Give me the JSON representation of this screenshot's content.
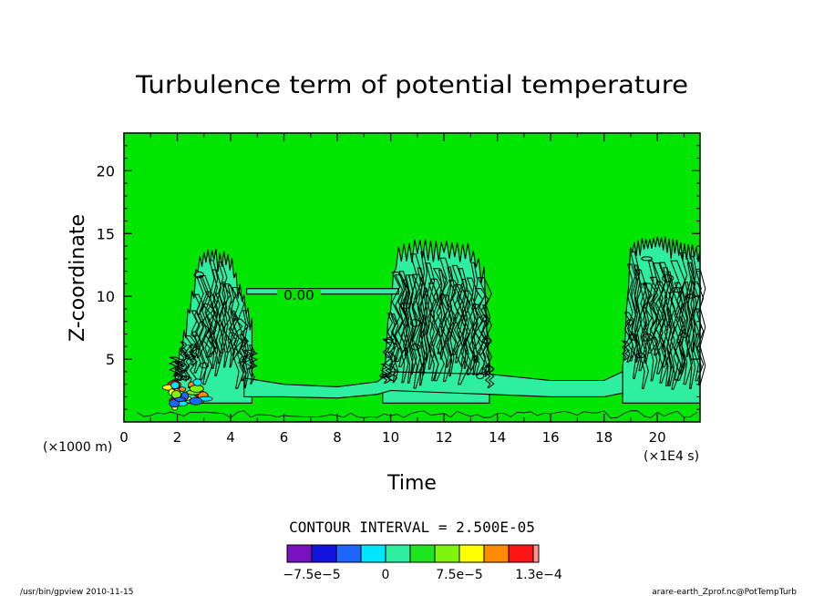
{
  "chart_data": {
    "type": "heatmap",
    "title": "Turbulence term of potential temperature",
    "xlabel": "Time",
    "ylabel": "Z-coordinate",
    "x_unit": "(×1E4 s)",
    "y_unit": "(×1000 m)",
    "xlim": [
      0,
      21.6
    ],
    "ylim": [
      0,
      23
    ],
    "x_ticks": [
      0,
      2,
      4,
      6,
      8,
      10,
      12,
      14,
      16,
      18,
      20
    ],
    "y_ticks": [
      5,
      10,
      15,
      20
    ],
    "contour_label": "0.00",
    "contour_interval_text": "CONTOUR INTERVAL = 2.500E-05",
    "colorbar": {
      "levels": [
        -0.0001,
        -7.5e-05,
        -5e-05,
        -2.5e-05,
        0,
        2.5e-05,
        5e-05,
        7.5e-05,
        0.0001,
        0.000125,
        0.00013
      ],
      "colors": [
        "#7a10c0",
        "#1414e0",
        "#1e64ff",
        "#00e6ff",
        "#2eeea0",
        "#1ee61e",
        "#7ef50a",
        "#ffff00",
        "#ff8c00",
        "#ff1414",
        "#ff9090"
      ],
      "tick_labels": [
        {
          "value": -7.5e-05,
          "text": "−7.5e−5"
        },
        {
          "value": 0,
          "text": "0"
        },
        {
          "value": 7.5e-05,
          "text": "7.5e−5"
        },
        {
          "value": 0.00013,
          "text": "1.3e−4"
        }
      ]
    },
    "background_color": "#00e600",
    "regions": [
      {
        "name": "turbulent-burst-1",
        "x": [
          1.8,
          2.8,
          3.2,
          4.0,
          4.3,
          4.8
        ],
        "top": [
          2.5,
          12.8,
          13.5,
          13.0,
          11.0,
          8.0
        ],
        "level": 0
      },
      {
        "name": "turbulent-burst-2",
        "x": [
          9.7,
          10.2,
          11.0,
          12.0,
          13.0,
          13.5,
          13.7
        ],
        "top": [
          4.0,
          13.5,
          14.2,
          14.0,
          13.8,
          12.0,
          4.0
        ],
        "level": 0
      },
      {
        "name": "turbulent-burst-3",
        "x": [
          18.7,
          19.0,
          20.0,
          21.0,
          21.6
        ],
        "top": [
          4.0,
          14.0,
          14.5,
          14.0,
          13.5
        ],
        "level": 0
      }
    ],
    "boundary_layer": {
      "x": [
        4.5,
        6.0,
        8.0,
        9.5,
        10.0,
        13.7,
        16.0,
        18.0,
        18.7
      ],
      "top": [
        3.5,
        3.0,
        2.8,
        3.2,
        4.0,
        3.8,
        3.3,
        3.3,
        4.0
      ],
      "bottom": [
        2.0,
        2.0,
        1.9,
        2.2,
        2.5,
        2.2,
        2.0,
        2.0,
        2.3
      ]
    },
    "residual_layer": {
      "x": [
        4.6,
        10.3
      ],
      "z": [
        10.4,
        10.4
      ]
    },
    "peak_cluster": {
      "x": [
        1.7,
        3.1
      ],
      "z": [
        1.2,
        3.2
      ],
      "values": [
        0.00013,
        0.0001,
        7.5e-05,
        5e-05,
        -2.5e-05,
        -5e-05
      ]
    }
  },
  "footer": {
    "left": "/usr/bin/gpview  2010-11-15",
    "right": "arare-earth_Zprof.nc@PotTempTurb"
  }
}
